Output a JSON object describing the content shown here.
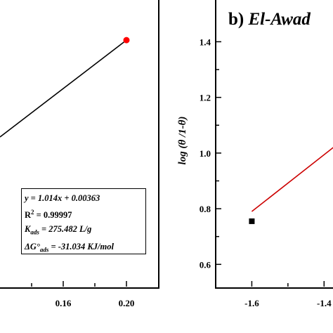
{
  "chart_data": [
    {
      "type": "line",
      "panel": "a",
      "xlim": [
        0.12,
        0.22
      ],
      "ylim": [
        0,
        0.24
      ],
      "x_ticks": [
        "0.16",
        "0.20"
      ],
      "fit_line": {
        "x": [
          0.12,
          0.2
        ],
        "y": [
          0.1253,
          0.2064
        ],
        "color": "#000000"
      },
      "series": [
        {
          "x": [
            0.2
          ],
          "y": [
            0.2064
          ],
          "color": "#ff0000"
        }
      ],
      "annotation": {
        "equation": "y = 1.014x + 0.00363",
        "r2_label": "R",
        "r2_sup": "2",
        "r2_value": " = 0.99997",
        "k_label": "K",
        "k_sub": "ads",
        "k_value": " = 275.482 L/g",
        "dg_label": "ΔG°",
        "dg_sub": "ads",
        "dg_value": " = -31.034 KJ/mol"
      }
    },
    {
      "type": "line",
      "panel": "b",
      "title_prefix": "b) ",
      "title_italic": "El-Awad",
      "xlim": [
        -1.7,
        -1.35
      ],
      "ylim": [
        0.52,
        1.55
      ],
      "x_ticks": [
        "-1.6",
        "-1.4"
      ],
      "y_ticks": [
        "0.6",
        "0.8",
        "1.0",
        "1.2",
        "1.4"
      ],
      "ylabel": "log (θ /1-θ)",
      "fit_line": {
        "x": [
          -1.6,
          -1.35
        ],
        "y": [
          0.79,
          1.045
        ],
        "color": "#cc0000"
      },
      "series": [
        {
          "x": [
            -1.6
          ],
          "y": [
            0.755
          ],
          "marker": "square",
          "color": "#000000"
        }
      ]
    }
  ]
}
